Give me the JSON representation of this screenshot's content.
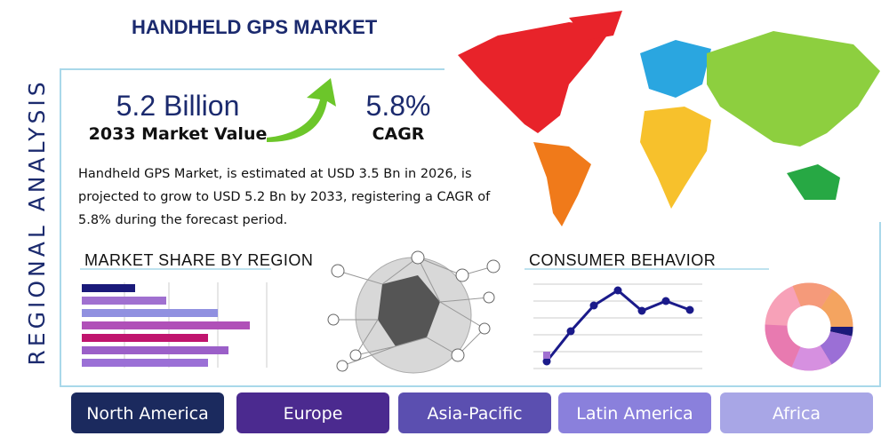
{
  "header": {
    "title": "HANDHELD GPS MARKET",
    "side_label": "REGIONAL ANALYSIS"
  },
  "stats": [
    {
      "value": "5.2 Billion",
      "label": "2033 Market Value"
    },
    {
      "value": "5.8%",
      "label": "CAGR"
    }
  ],
  "description": "Handheld GPS Market, is estimated at USD 3.5 Bn in 2026, is projected to grow to USD 5.2 Bn by 2033, registering a CAGR of 5.8% during the forecast period.",
  "sections": {
    "market_share": "MARKET SHARE BY REGION",
    "consumer_behavior": "CONSUMER BEHAVIOR"
  },
  "regions": [
    "North America",
    "Europe",
    "Asia-Pacific",
    "Latin America",
    "Africa"
  ]
}
